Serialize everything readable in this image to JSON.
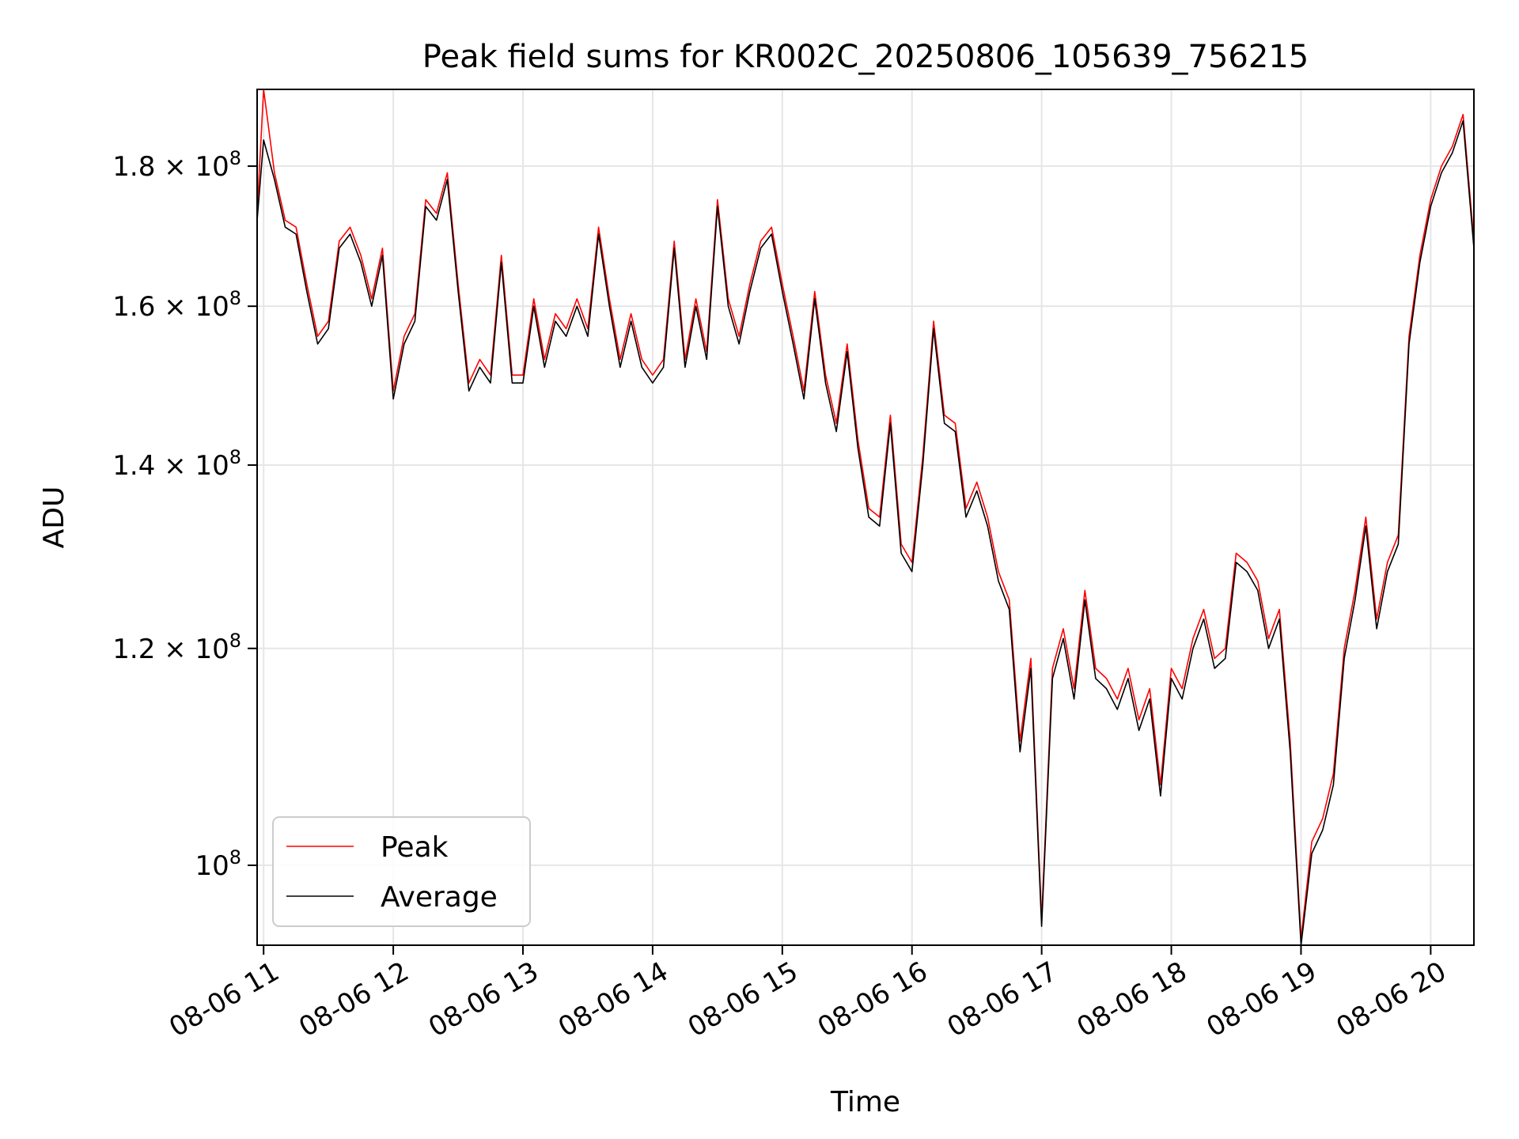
{
  "chart_data": {
    "type": "line",
    "title": "Peak field sums for KR002C_20250806_105639_756215",
    "xlabel": "Time",
    "ylabel": "ADU",
    "y_scale": "log",
    "xlim": [
      "08-06 10:57",
      "08-06 20:20"
    ],
    "ylim": [
      93500000.0,
      192000000.0
    ],
    "grid": true,
    "legend_position": "lower left",
    "x_ticks": [
      "08-06 11",
      "08-06 12",
      "08-06 13",
      "08-06 14",
      "08-06 15",
      "08-06 16",
      "08-06 17",
      "08-06 18",
      "08-06 19",
      "08-06 20"
    ],
    "y_ticks": [
      {
        "value": 100000000.0,
        "mantissa": "",
        "exponent": "8",
        "base": "10"
      },
      {
        "value": 120000000.0,
        "mantissa": "1.2",
        "exponent": "8",
        "base": "10"
      },
      {
        "value": 140000000.0,
        "mantissa": "1.4",
        "exponent": "8",
        "base": "10"
      },
      {
        "value": 160000000.0,
        "mantissa": "1.6",
        "exponent": "8",
        "base": "10"
      },
      {
        "value": 180000000.0,
        "mantissa": "1.8",
        "exponent": "8",
        "base": "10"
      }
    ],
    "x": [
      "10:57",
      "11:00",
      "11:05",
      "11:10",
      "11:15",
      "11:20",
      "11:25",
      "11:30",
      "11:35",
      "11:40",
      "11:45",
      "11:50",
      "11:55",
      "12:00",
      "12:05",
      "12:10",
      "12:15",
      "12:20",
      "12:25",
      "12:30",
      "12:35",
      "12:40",
      "12:45",
      "12:50",
      "12:55",
      "13:00",
      "13:05",
      "13:10",
      "13:15",
      "13:20",
      "13:25",
      "13:30",
      "13:35",
      "13:40",
      "13:45",
      "13:50",
      "13:55",
      "14:00",
      "14:05",
      "14:10",
      "14:15",
      "14:20",
      "14:25",
      "14:30",
      "14:35",
      "14:40",
      "14:45",
      "14:50",
      "14:55",
      "15:00",
      "15:05",
      "15:10",
      "15:15",
      "15:20",
      "15:25",
      "15:30",
      "15:35",
      "15:40",
      "15:45",
      "15:50",
      "15:55",
      "16:00",
      "16:05",
      "16:10",
      "16:15",
      "16:20",
      "16:25",
      "16:30",
      "16:35",
      "16:40",
      "16:45",
      "16:50",
      "16:55",
      "17:00",
      "17:05",
      "17:10",
      "17:15",
      "17:20",
      "17:25",
      "17:30",
      "17:35",
      "17:40",
      "17:45",
      "17:50",
      "17:55",
      "18:00",
      "18:05",
      "18:10",
      "18:15",
      "18:20",
      "18:25",
      "18:30",
      "18:35",
      "18:40",
      "18:45",
      "18:50",
      "18:55",
      "19:00",
      "19:05",
      "19:10",
      "19:15",
      "19:20",
      "19:25",
      "19:30",
      "19:35",
      "19:40",
      "19:45",
      "19:50",
      "19:55",
      "20:00",
      "20:05",
      "20:10",
      "20:15",
      "20:20"
    ],
    "series": [
      {
        "name": "Average",
        "color": "#000000",
        "values": [
          172000000.0,
          184000000.0,
          178000000.0,
          171000000.0,
          170000000.0,
          162000000.0,
          155000000.0,
          157000000.0,
          168000000.0,
          170000000.0,
          166000000.0,
          160000000.0,
          167000000.0,
          148000000.0,
          155000000.0,
          158000000.0,
          174000000.0,
          172000000.0,
          178000000.0,
          162000000.0,
          149000000.0,
          152000000.0,
          150000000.0,
          166000000.0,
          150000000.0,
          150000000.0,
          160000000.0,
          152000000.0,
          158000000.0,
          156000000.0,
          160000000.0,
          156000000.0,
          170000000.0,
          160000000.0,
          152000000.0,
          158000000.0,
          152000000.0,
          150000000.0,
          152000000.0,
          168000000.0,
          152000000.0,
          160000000.0,
          153000000.0,
          174000000.0,
          160000000.0,
          155000000.0,
          162000000.0,
          168000000.0,
          170000000.0,
          162000000.0,
          155000000.0,
          148000000.0,
          161000000.0,
          150000000.0,
          144000000.0,
          154000000.0,
          142000000.0,
          134000000.0,
          133000000.0,
          145000000.0,
          130000000.0,
          128000000.0,
          140000000.0,
          157000000.0,
          145000000.0,
          144000000.0,
          134000000.0,
          137000000.0,
          133000000.0,
          127000000.0,
          124000000.0,
          110000000.0,
          118000000.0,
          95000000.0,
          117000000.0,
          121000000.0,
          115000000.0,
          125000000.0,
          117000000.0,
          116000000.0,
          114000000.0,
          117000000.0,
          112000000.0,
          115000000.0,
          106000000.0,
          117000000.0,
          115000000.0,
          120000000.0,
          123000000.0,
          118000000.0,
          119000000.0,
          129000000.0,
          128000000.0,
          126000000.0,
          120000000.0,
          123000000.0,
          110000000.0,
          93500000.0,
          101000000.0,
          103000000.0,
          107000000.0,
          119000000.0,
          125000000.0,
          133000000.0,
          122000000.0,
          128000000.0,
          131000000.0,
          155000000.0,
          166000000.0,
          174000000.0,
          179000000.0,
          182000000.0,
          187000000.0,
          168000000.0
        ]
      },
      {
        "name": "Peak",
        "color": "#ff0000",
        "values": [
          173000000.0,
          192000000.0,
          179000000.0,
          172000000.0,
          171000000.0,
          163000000.0,
          156000000.0,
          158000000.0,
          169000000.0,
          171000000.0,
          167000000.0,
          161000000.0,
          168000000.0,
          149000000.0,
          156000000.0,
          159000000.0,
          175000000.0,
          173000000.0,
          179000000.0,
          163000000.0,
          150000000.0,
          153000000.0,
          151000000.0,
          167000000.0,
          151000000.0,
          151000000.0,
          161000000.0,
          153000000.0,
          159000000.0,
          157000000.0,
          161000000.0,
          157000000.0,
          171000000.0,
          161000000.0,
          153000000.0,
          159000000.0,
          153000000.0,
          151000000.0,
          153000000.0,
          169000000.0,
          153000000.0,
          161000000.0,
          154000000.0,
          175000000.0,
          161000000.0,
          156000000.0,
          163000000.0,
          169000000.0,
          171000000.0,
          163000000.0,
          156000000.0,
          149000000.0,
          162000000.0,
          151000000.0,
          145000000.0,
          155000000.0,
          143000000.0,
          135000000.0,
          134000000.0,
          146000000.0,
          131000000.0,
          129000000.0,
          141000000.0,
          158000000.0,
          146000000.0,
          145000000.0,
          135000000.0,
          138000000.0,
          134000000.0,
          128000000.0,
          125000000.0,
          111000000.0,
          119000000.0,
          95500000.0,
          118000000.0,
          122000000.0,
          116000000.0,
          126000000.0,
          118000000.0,
          117000000.0,
          115000000.0,
          118000000.0,
          113000000.0,
          116000000.0,
          107000000.0,
          118000000.0,
          116000000.0,
          121000000.0,
          124000000.0,
          119000000.0,
          120000000.0,
          130000000.0,
          129000000.0,
          127000000.0,
          121000000.0,
          124000000.0,
          111000000.0,
          94000000.0,
          102000000.0,
          104000000.0,
          108000000.0,
          120000000.0,
          126000000.0,
          134000000.0,
          123000000.0,
          129000000.0,
          132000000.0,
          156000000.0,
          167000000.0,
          175000000.0,
          180000000.0,
          183000000.0,
          188000000.0,
          169000000.0
        ]
      }
    ],
    "legend": [
      {
        "label": "Peak",
        "color": "#ff0000"
      },
      {
        "label": "Average",
        "color": "#000000"
      }
    ]
  }
}
